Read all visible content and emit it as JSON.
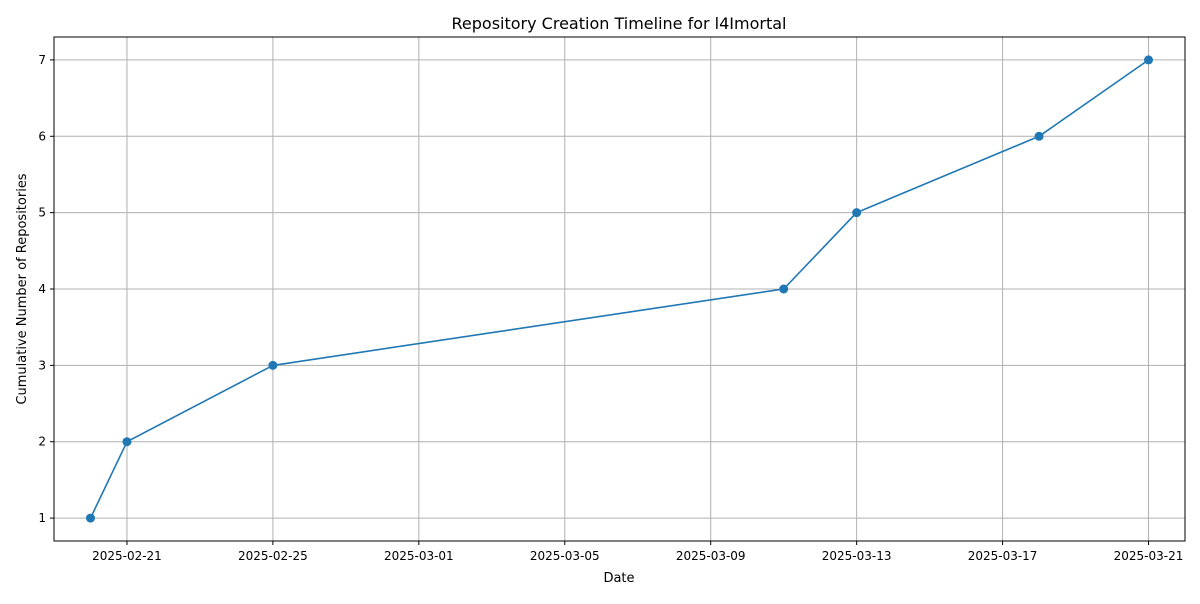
{
  "chart_data": {
    "type": "line",
    "title": "Repository Creation Timeline for l4Imortal",
    "xlabel": "Date",
    "ylabel": "Cumulative Number of Repositories",
    "x": [
      "2025-02-20",
      "2025-02-21",
      "2025-02-25",
      "2025-03-11",
      "2025-03-13",
      "2025-03-18",
      "2025-03-21"
    ],
    "series": [
      {
        "values": [
          1,
          2,
          3,
          4,
          5,
          6,
          7
        ]
      }
    ],
    "xlim": [
      "2025-02-19",
      "2025-03-22"
    ],
    "ylim": [
      0.7,
      7.3
    ],
    "x_ticks": [
      "2025-02-21",
      "2025-02-25",
      "2025-03-01",
      "2025-03-05",
      "2025-03-09",
      "2025-03-13",
      "2025-03-17",
      "2025-03-21"
    ],
    "y_ticks": [
      1,
      2,
      3,
      4,
      5,
      6,
      7
    ],
    "grid": true,
    "markers": true
  },
  "colors": {
    "line": "#1f77b4",
    "grid": "#b0b0b0",
    "axes": "#000000"
  }
}
